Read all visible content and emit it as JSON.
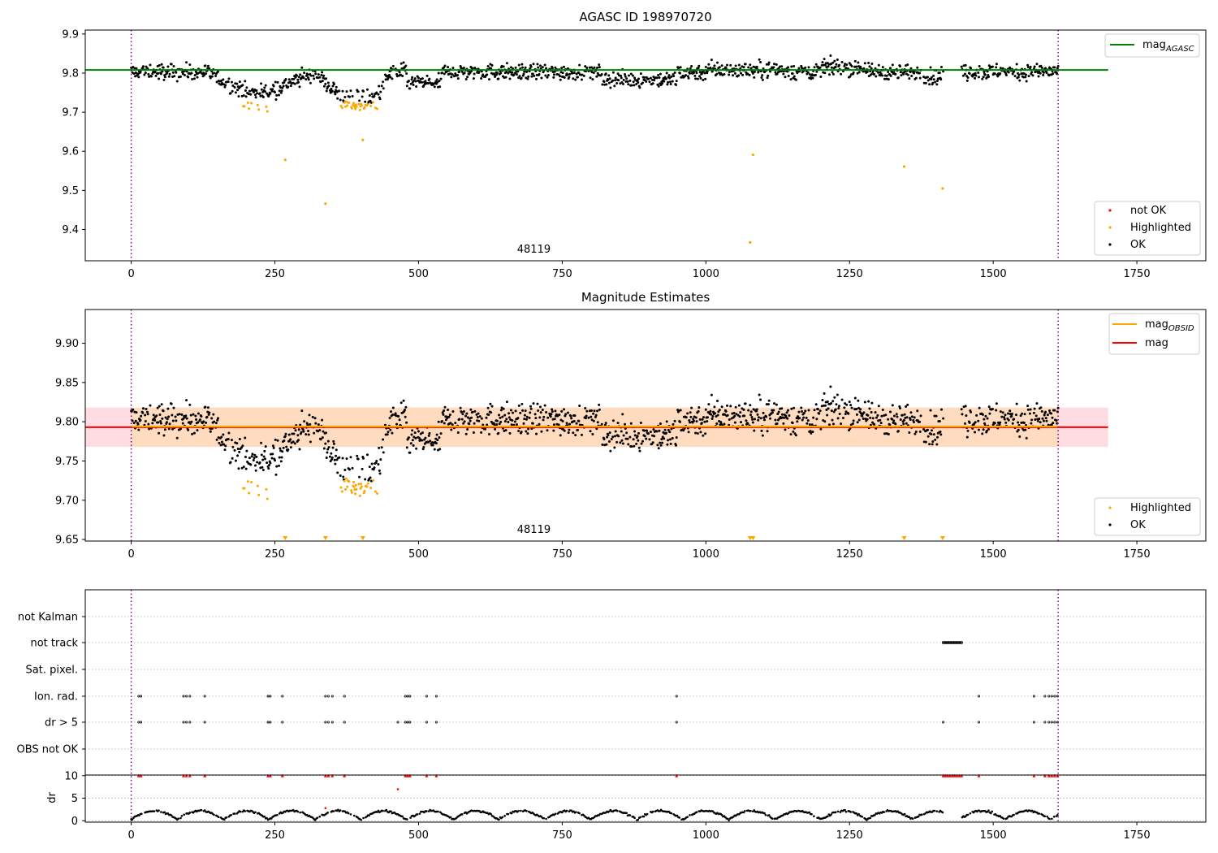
{
  "chart_data": [
    {
      "type": "scatter",
      "title": "AGASC ID 198970720",
      "xlim": [
        -80,
        1870
      ],
      "ylim": [
        9.32,
        9.91
      ],
      "xticks": [
        "0",
        "250",
        "500",
        "750",
        "1000",
        "1250",
        "1500",
        "1750"
      ],
      "yticks": [
        "9.4",
        "9.5",
        "9.6",
        "9.7",
        "9.8",
        "9.9"
      ],
      "vertical_markers_x": [
        0,
        1613
      ],
      "obsid_label": "48119",
      "obsid_label_x": 808,
      "reference_line": {
        "name": "mag",
        "subscript": "AGASC",
        "y": 9.808,
        "x_range": [
          -80,
          1700
        ],
        "color": "#008000"
      },
      "legend_lines": [
        {
          "name": "mag",
          "subscript": "AGASC",
          "color": "#008000"
        }
      ],
      "legend_points": [
        {
          "name": "not OK",
          "color": "#ff0000"
        },
        {
          "name": "Highlighted",
          "color": "#ffa500"
        },
        {
          "name": "OK",
          "color": "#000000"
        }
      ],
      "highlighted_outliers": [
        {
          "x": 268,
          "y": 9.578
        },
        {
          "x": 338,
          "y": 9.466
        },
        {
          "x": 403,
          "y": 9.629
        },
        {
          "x": 1077,
          "y": 9.367
        },
        {
          "x": 1082,
          "y": 9.591
        },
        {
          "x": 1345,
          "y": 9.561
        },
        {
          "x": 1412,
          "y": 9.505
        }
      ]
    },
    {
      "type": "scatter",
      "title": "Magnitude Estimates",
      "xlim": [
        -80,
        1870
      ],
      "ylim": [
        9.648,
        9.943
      ],
      "xticks": [
        "0",
        "250",
        "500",
        "750",
        "1000",
        "1250",
        "1500",
        "1750"
      ],
      "yticks": [
        "9.65",
        "9.70",
        "9.75",
        "9.80",
        "9.85",
        "9.90"
      ],
      "vertical_markers_x": [
        0,
        1613
      ],
      "obsid_label": "48119",
      "obsid_label_x": 808,
      "mag_line": {
        "name": "mag",
        "y": 9.793,
        "x_range": [
          -80,
          1700
        ],
        "color": "#ff0000"
      },
      "mag_obsid_line": {
        "name": "mag",
        "subscript": "OBSID",
        "y": 9.794,
        "x_range": [
          0,
          1613
        ],
        "color": "#ffa500"
      },
      "mag_band": {
        "y_low": 9.768,
        "y_high": 9.818,
        "x_range": [
          -80,
          1700
        ],
        "color": "#ffc0cb"
      },
      "obsid_band": {
        "y_low": 9.768,
        "y_high": 9.818,
        "x_range": [
          0,
          1613
        ],
        "color": "#ffdab9"
      },
      "off_scale_markers_x": [
        268,
        338,
        403,
        1077,
        1082,
        1345,
        1412
      ],
      "legend_lines": [
        {
          "name": "mag",
          "subscript": "OBSID",
          "color": "#ffa500"
        },
        {
          "name": "mag",
          "subscript": "",
          "color": "#ff0000"
        }
      ],
      "legend_points": [
        {
          "name": "Highlighted",
          "color": "#ffa500"
        },
        {
          "name": "OK",
          "color": "#000000"
        }
      ]
    },
    {
      "type": "scatter",
      "title": "",
      "xlim": [
        -80,
        1870
      ],
      "xticks": [
        "0",
        "250",
        "500",
        "750",
        "1000",
        "1250",
        "1500",
        "1750"
      ],
      "vertical_markers_x": [
        0,
        1613
      ],
      "flag_rows": [
        "not Kalman",
        "not track",
        "Sat. pixel.",
        "Ion. rad.",
        "dr > 5",
        "OBS not OK"
      ],
      "flags": {
        "not_track_range": [
          1413,
          1445
        ],
        "ion_rad_x": [
          13,
          17,
          91,
          96,
          102,
          128,
          238,
          242,
          263,
          338,
          343,
          350,
          371,
          477,
          481,
          485,
          514,
          531,
          949,
          1475,
          1571,
          1590,
          1597,
          1602,
          1607,
          1612
        ],
        "dr5_x": [
          13,
          17,
          91,
          96,
          102,
          128,
          238,
          242,
          263,
          338,
          343,
          350,
          371,
          464,
          477,
          481,
          485,
          514,
          531,
          949,
          1413,
          1475,
          1571,
          1590,
          1597,
          1602,
          1607,
          1612
        ]
      },
      "dr_panel": {
        "ylabel": "dr",
        "yticks": [
          "0",
          "5",
          "10"
        ],
        "ylim": [
          -0.3,
          10.5
        ],
        "clipped_value": 10,
        "clipped_x": [
          13,
          17,
          91,
          96,
          102,
          128,
          238,
          242,
          263,
          338,
          343,
          350,
          371,
          477,
          481,
          485,
          514,
          531,
          949,
          1413,
          1417,
          1421,
          1425,
          1429,
          1433,
          1437,
          1441,
          1445,
          1475,
          1571,
          1590,
          1597,
          1602,
          1607,
          1612
        ],
        "red_points": [
          {
            "x": 464,
            "y": 7.0
          },
          {
            "x": 338,
            "y": 2.8
          }
        ]
      }
    }
  ]
}
